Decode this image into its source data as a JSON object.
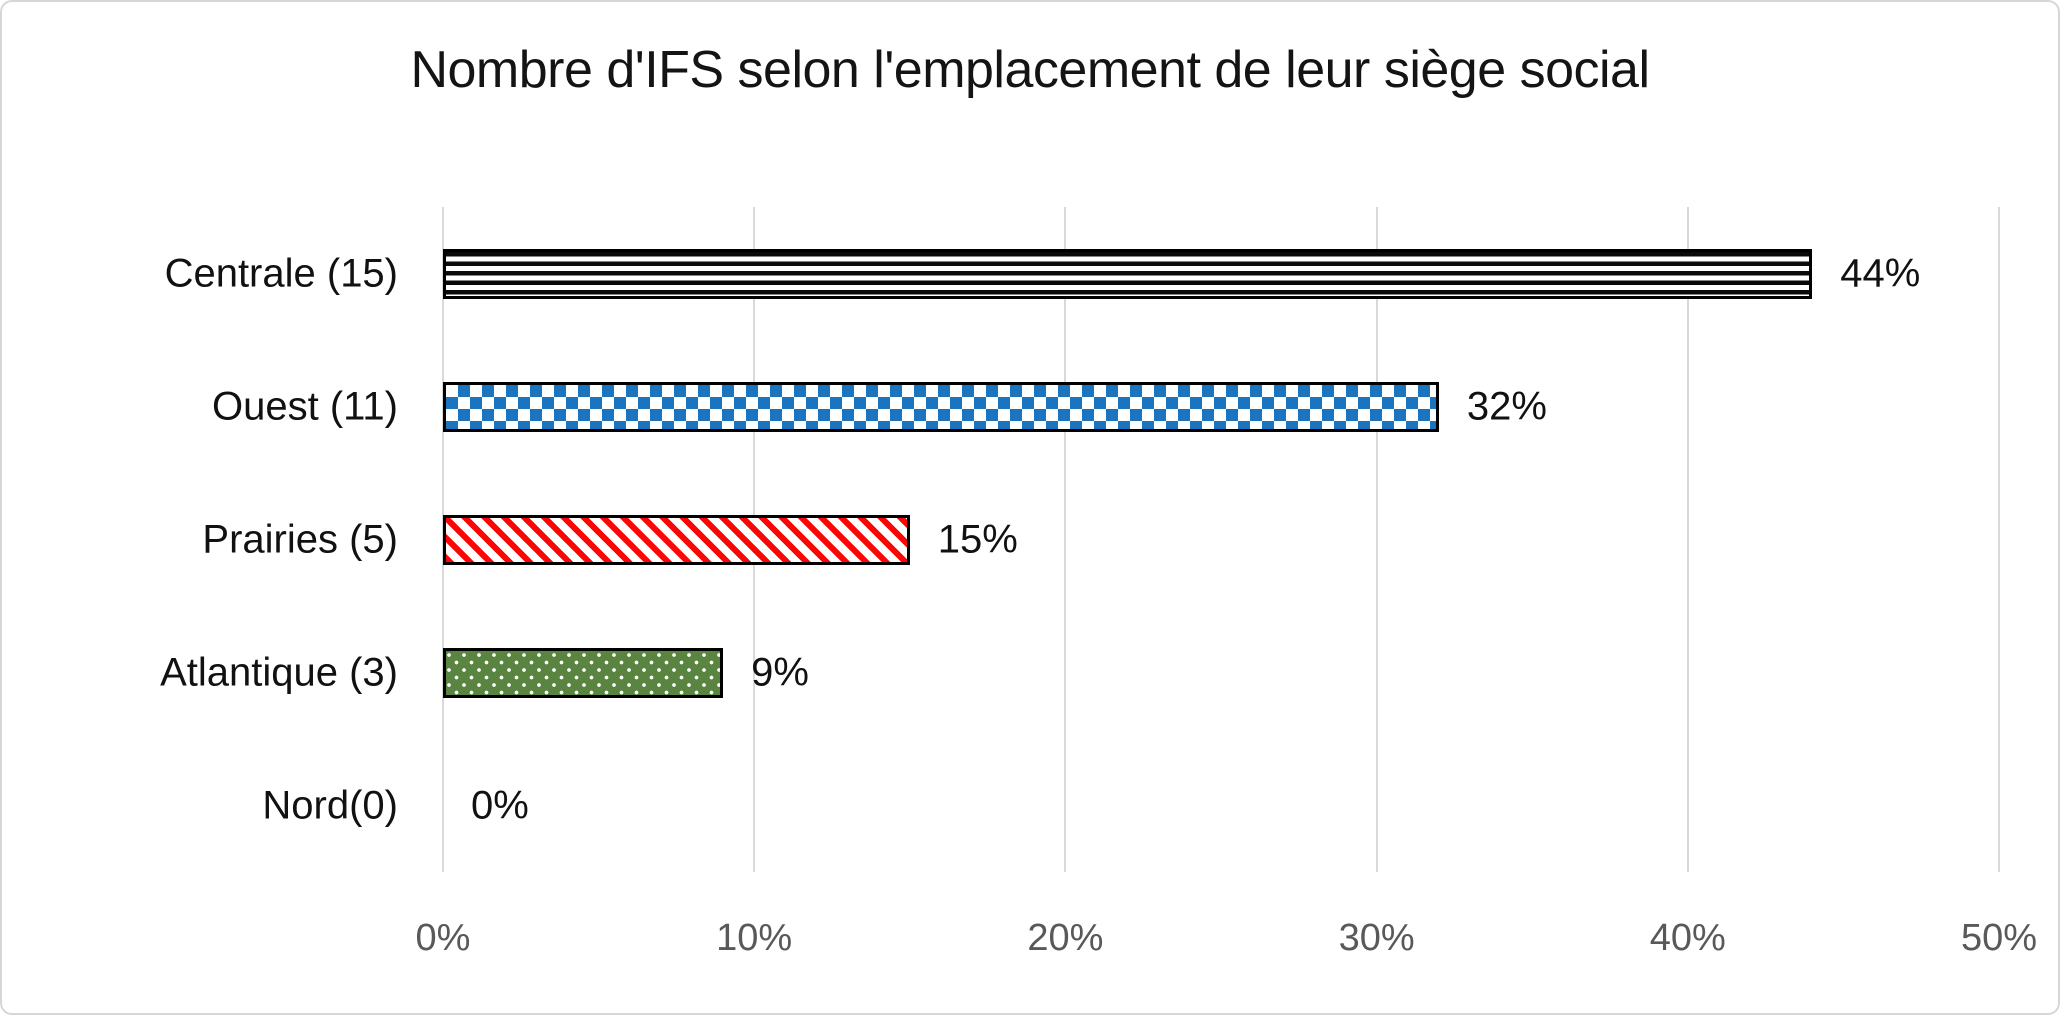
{
  "chart_data": {
    "type": "bar",
    "orientation": "horizontal",
    "title": "Nombre d'IFS selon l'emplacement de leur siège social",
    "categories": [
      "Centrale (15)",
      "Ouest (11)",
      "Prairies (5)",
      "Atlantique (3)",
      "Nord(0)"
    ],
    "values": [
      44,
      32,
      15,
      9,
      0
    ],
    "data_labels": [
      "44%",
      "32%",
      "15%",
      "9%",
      "0%"
    ],
    "x_ticks": [
      "0%",
      "10%",
      "20%",
      "30%",
      "40%",
      "50%"
    ],
    "xlim": [
      0,
      50
    ],
    "grid": true,
    "legend": "none",
    "bar_patterns": [
      "stripes-horizontal",
      "checker",
      "stripes-diagonal",
      "dots",
      "none"
    ],
    "colors": {
      "stripe_black": "#0a0a0a",
      "checker_blue": "#1b75be",
      "stripe_red": "#fb0505",
      "dot_green": "#598540",
      "gridline": "#d9d9d9",
      "tick_label": "#595959",
      "text": "#111111"
    }
  }
}
